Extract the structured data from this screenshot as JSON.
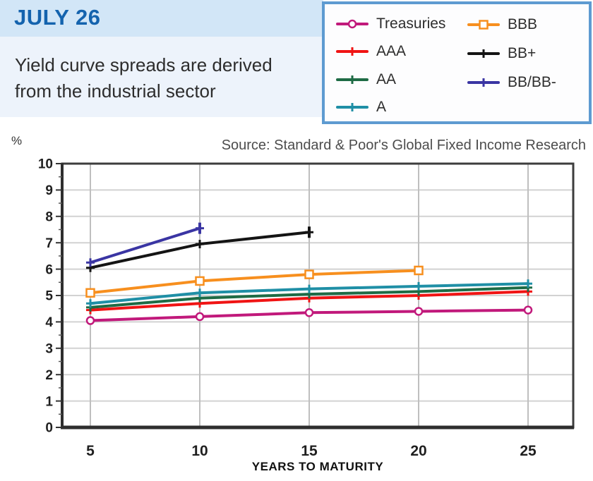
{
  "header": {
    "date_label": "JULY 26",
    "subtitle_line1": "Yield curve spreads are derived",
    "subtitle_line2": "from the industrial sector"
  },
  "source_note": "Source: Standard & Poor's Global Fixed Income Research",
  "colors": {
    "title_blue": "#1463ae",
    "header_band": "#d2e6f7",
    "subtitle_bg": "#edf3fb",
    "legend_border": "#5e9bd1",
    "grid_horizontal": "#d2d2d2",
    "grid_vertical": "#bfbfbf",
    "axis": "#3d3d3d"
  },
  "chart_data": {
    "type": "line",
    "x_axis_label": "YEARS TO MATURITY",
    "y_unit": "%",
    "x_ticks": [
      5,
      10,
      15,
      20,
      25
    ],
    "y_min": 0,
    "y_max": 10,
    "y_step": 1,
    "y_minor_step": 0.5,
    "grid": true,
    "legend_position": "top-right",
    "legend_columns": [
      [
        "Treasuries",
        "AAA",
        "AA",
        "A"
      ],
      [
        "BBB",
        "BB+",
        "BB/BB-"
      ]
    ],
    "series": [
      {
        "name": "Treasuries",
        "color": "#c1197b",
        "marker": "circle",
        "x": [
          5,
          10,
          15,
          20,
          25
        ],
        "y": [
          4.05,
          4.2,
          4.35,
          4.4,
          4.45
        ]
      },
      {
        "name": "AAA",
        "color": "#f01414",
        "marker": "plus",
        "x": [
          5,
          10,
          15,
          20,
          25
        ],
        "y": [
          4.45,
          4.7,
          4.9,
          5.0,
          5.15
        ]
      },
      {
        "name": "AA",
        "color": "#1e6b45",
        "marker": "plus",
        "x": [
          5,
          10,
          15,
          20,
          25
        ],
        "y": [
          4.55,
          4.9,
          5.05,
          5.15,
          5.3
        ]
      },
      {
        "name": "A",
        "color": "#1f8fa6",
        "marker": "plus",
        "x": [
          5,
          10,
          15,
          20,
          25
        ],
        "y": [
          4.7,
          5.1,
          5.25,
          5.35,
          5.45
        ]
      },
      {
        "name": "BBB",
        "color": "#f78f1e",
        "marker": "square",
        "x": [
          5,
          10,
          15,
          20
        ],
        "y": [
          5.1,
          5.55,
          5.8,
          5.95
        ]
      },
      {
        "name": "BB+",
        "color": "#141414",
        "marker": "plus",
        "endcap": true,
        "x": [
          5,
          10,
          15
        ],
        "y": [
          6.05,
          6.95,
          7.4
        ]
      },
      {
        "name": "BB/BB-",
        "color": "#3a35a3",
        "marker": "plus",
        "endcap": true,
        "x": [
          5,
          10
        ],
        "y": [
          6.25,
          7.55
        ]
      }
    ]
  }
}
